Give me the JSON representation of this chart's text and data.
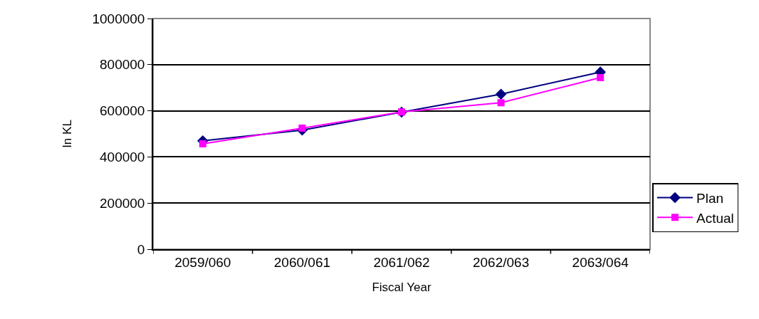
{
  "chart_data": {
    "type": "line",
    "xlabel": "Fiscal Year",
    "ylabel": "In KL",
    "categories": [
      "2059/060",
      "2060/061",
      "2061/062",
      "2062/063",
      "2063/064"
    ],
    "series": [
      {
        "name": "Plan",
        "color": "#000080",
        "marker": "diamond",
        "values": [
          470000,
          516000,
          594000,
          672000,
          768000
        ]
      },
      {
        "name": "Actual",
        "color": "#ff00ff",
        "marker": "square",
        "values": [
          457000,
          525000,
          595000,
          635000,
          744000
        ]
      }
    ],
    "ylim": [
      0,
      1000000
    ],
    "yticks": [
      0,
      200000,
      400000,
      600000,
      800000,
      1000000
    ],
    "grid": "y",
    "legend": "bottom right",
    "line_style": "solid"
  }
}
